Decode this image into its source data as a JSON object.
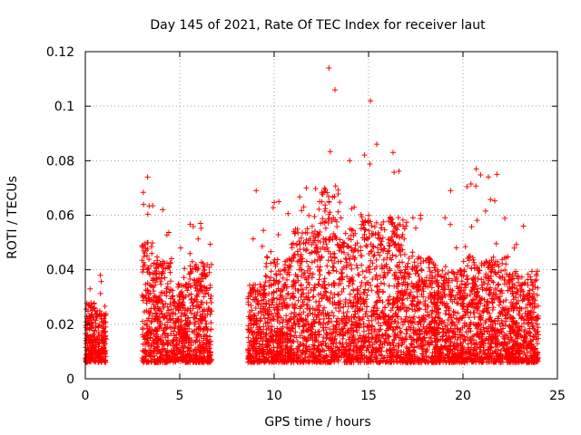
{
  "chart_data": {
    "type": "scatter",
    "title": "Day 145 of 2021, Rate Of TEC Index for receiver laut",
    "xlabel": "GPS time / hours",
    "ylabel": "ROTI / TECUs",
    "xlim": [
      0,
      25
    ],
    "ylim": [
      0,
      0.12
    ],
    "xticks": [
      "0",
      "5",
      "10",
      "15",
      "20",
      "25"
    ],
    "yticks": [
      "0",
      "0.02",
      "0.04",
      "0.06",
      "0.08",
      "0.1",
      "0.12"
    ],
    "grid": true,
    "marker": "plus",
    "color": "#ff0000",
    "activity_profile": [
      {
        "x_range": [
          0.0,
          0.5
        ],
        "typical_max": 0.028,
        "peak": 0.033
      },
      {
        "x_range": [
          0.5,
          1.1
        ],
        "typical_max": 0.025,
        "peak": 0.038
      },
      {
        "x_range": [
          3.0,
          3.6
        ],
        "typical_max": 0.05,
        "peak": 0.074
      },
      {
        "x_range": [
          3.6,
          4.6
        ],
        "typical_max": 0.045,
        "peak": 0.062
      },
      {
        "x_range": [
          4.6,
          5.5
        ],
        "typical_max": 0.035,
        "peak": 0.048
      },
      {
        "x_range": [
          5.5,
          6.7
        ],
        "typical_max": 0.042,
        "peak": 0.057
      },
      {
        "x_range": [
          8.6,
          9.5
        ],
        "typical_max": 0.035,
        "peak": 0.069
      },
      {
        "x_range": [
          9.5,
          11.0
        ],
        "typical_max": 0.045,
        "peak": 0.065
      },
      {
        "x_range": [
          11.0,
          12.4
        ],
        "typical_max": 0.055,
        "peak": 0.07
      },
      {
        "x_range": [
          12.4,
          13.4
        ],
        "typical_max": 0.07,
        "peak": 0.114
      },
      {
        "x_range": [
          13.4,
          14.6
        ],
        "typical_max": 0.055,
        "peak": 0.08
      },
      {
        "x_range": [
          14.6,
          15.6
        ],
        "typical_max": 0.06,
        "peak": 0.102
      },
      {
        "x_range": [
          15.6,
          17.0
        ],
        "typical_max": 0.06,
        "peak": 0.083
      },
      {
        "x_range": [
          17.0,
          18.5
        ],
        "typical_max": 0.045,
        "peak": 0.06
      },
      {
        "x_range": [
          18.5,
          20.2
        ],
        "typical_max": 0.04,
        "peak": 0.069
      },
      {
        "x_range": [
          20.2,
          21.2
        ],
        "typical_max": 0.045,
        "peak": 0.077
      },
      {
        "x_range": [
          21.2,
          22.4
        ],
        "typical_max": 0.045,
        "peak": 0.075
      },
      {
        "x_range": [
          22.4,
          24.0
        ],
        "typical_max": 0.04,
        "peak": 0.056
      }
    ],
    "baseline": 0.006
  }
}
